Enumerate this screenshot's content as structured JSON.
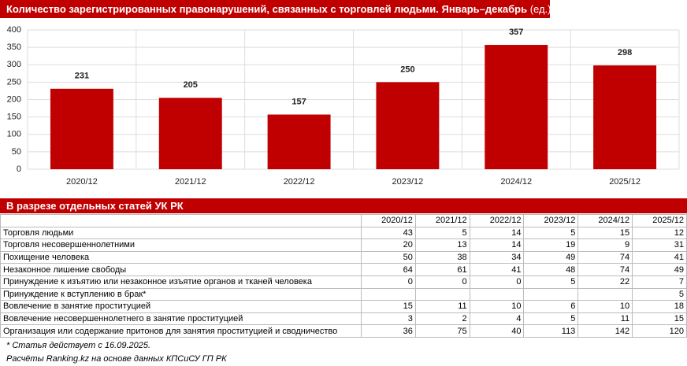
{
  "chart_data": {
    "type": "bar",
    "title": "Количество зарегистрированных правонарушений, связанных с торговлей людьми. Январь–декабрь",
    "unit": "(ед.)",
    "categories": [
      "2020/12",
      "2021/12",
      "2022/12",
      "2023/12",
      "2024/12",
      "2025/12"
    ],
    "values": [
      231,
      205,
      157,
      250,
      357,
      298
    ],
    "color": "#c00000",
    "ylim": [
      0,
      400
    ],
    "yticks": [
      0,
      50,
      100,
      150,
      200,
      250,
      300,
      350,
      400
    ],
    "grid": true
  },
  "table": {
    "title": "В разрезе отдельных статей УК РК",
    "columns": [
      "2020/12",
      "2021/12",
      "2022/12",
      "2023/12",
      "2024/12",
      "2025/12"
    ],
    "rows": [
      [
        "Торговля людьми",
        43,
        5,
        14,
        5,
        15,
        12
      ],
      [
        "Торговля несовершеннолетними",
        20,
        13,
        14,
        19,
        9,
        31
      ],
      [
        "Похищение человека",
        50,
        38,
        34,
        49,
        74,
        41
      ],
      [
        "Незаконное лишение свободы",
        64,
        61,
        41,
        48,
        74,
        49
      ],
      [
        "Принуждение к изъятию или незаконное изъятие органов и тканей человека",
        0,
        0,
        0,
        5,
        22,
        7
      ],
      [
        "Принуждение к вступлению в брак*",
        null,
        null,
        null,
        null,
        null,
        5
      ],
      [
        "Вовлечение в занятие проституцией",
        15,
        11,
        10,
        6,
        10,
        18
      ],
      [
        "Вовлечение несовершеннолетнего в занятие проституцией",
        3,
        2,
        4,
        5,
        11,
        15
      ],
      [
        "Организация или содержание притонов для занятия проституцией и сводничество",
        36,
        75,
        40,
        113,
        142,
        120
      ]
    ],
    "footnote": "* Статья действует с 16.09.2025.",
    "source": "Расчёты Ranking.kz на основе данных КПСиСУ ГП РК"
  }
}
